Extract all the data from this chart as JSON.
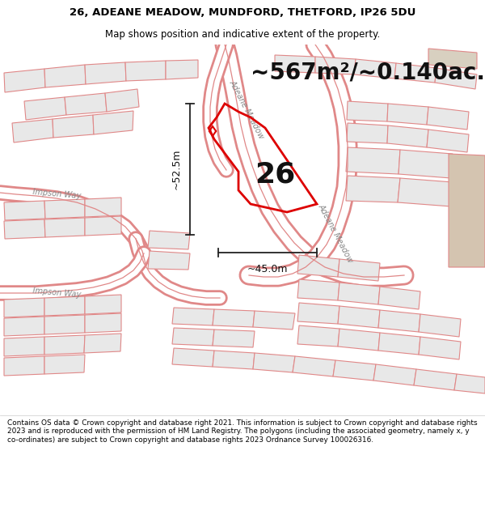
{
  "title_line1": "26, ADEANE MEADOW, MUNDFORD, THETFORD, IP26 5DU",
  "title_line2": "Map shows position and indicative extent of the property.",
  "area_text": "~567m²/~0.140ac.",
  "dim_vertical": "~52.5m",
  "dim_horizontal": "~45.0m",
  "plot_number": "26",
  "street_label_upper": "Adeane Meadow",
  "street_label_lower": "Adeane Meadow",
  "street_label_impson1": "Impson Way",
  "street_label_impson2": "Impson Way",
  "footer_text": "Contains OS data © Crown copyright and database right 2021. This information is subject to Crown copyright and database rights 2023 and is reproduced with the permission of HM Land Registry. The polygons (including the associated geometry, namely x, y co-ordinates) are subject to Crown copyright and database rights 2023 Ordnance Survey 100026316.",
  "map_bg": "#ffffff",
  "parcel_fill": "#e8e8e8",
  "parcel_edge": "#e08888",
  "road_fill": "#ffffff",
  "highlight_color": "#dd0000",
  "dim_color": "#222222",
  "street_color": "#888888",
  "tan_fill": "#d8c8b8",
  "title_fontsize": 9.5,
  "subtitle_fontsize": 8.5,
  "area_fontsize": 20,
  "plot_fontsize": 26,
  "dim_fontsize": 9,
  "street_fontsize": 7
}
